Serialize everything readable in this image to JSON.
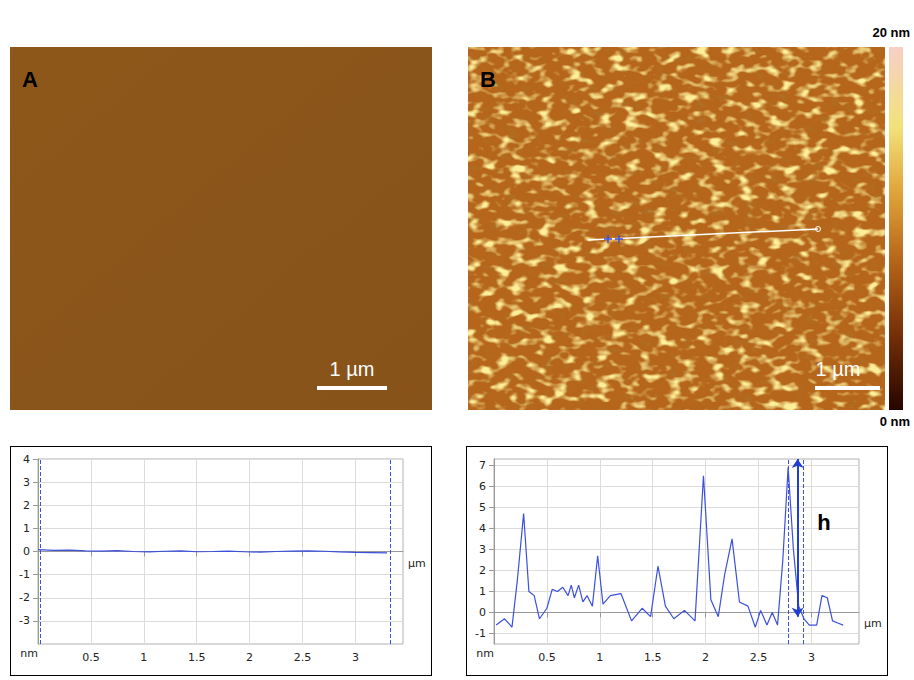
{
  "images": [
    {
      "letter": "A",
      "scale_bar": "1 µm"
    },
    {
      "letter": "B",
      "scale_bar": "1 µm",
      "colorbar": {
        "min": {
          "value": 0,
          "label": "0 nm"
        },
        "max": {
          "value": 20,
          "label": "20 nm"
        }
      }
    }
  ],
  "chart_data": [
    {
      "type": "line",
      "color": "#3c50dc",
      "grid": true,
      "x_label": "µm",
      "y_label": "nm",
      "xlim": [
        0,
        3.45
      ],
      "xticks": [
        0.5,
        1,
        1.5,
        2,
        2.5,
        3
      ],
      "ylim": [
        -4,
        4
      ],
      "yticks": [
        -3,
        -2,
        -1,
        0,
        1,
        2,
        3,
        4
      ],
      "x": [
        0,
        0.15,
        0.3,
        0.45,
        0.6,
        0.75,
        0.9,
        1.05,
        1.2,
        1.35,
        1.5,
        1.65,
        1.8,
        1.95,
        2.1,
        2.25,
        2.4,
        2.55,
        2.7,
        2.85,
        3.0,
        3.15,
        3.3
      ],
      "values": [
        0.08,
        0.05,
        0.06,
        0.03,
        0.02,
        0.04,
        0,
        -0.02,
        0.01,
        0.03,
        -0.01,
        0,
        0.02,
        -0.01,
        -0.03,
        0,
        0.02,
        0.03,
        0.01,
        -0.02,
        -0.04,
        -0.05,
        -0.06
      ],
      "cursors": [
        0.02,
        3.33
      ]
    },
    {
      "type": "line",
      "color": "#3c50dc",
      "grid": true,
      "x_label": "µm",
      "y_label": "nm",
      "xlim": [
        0,
        3.45
      ],
      "xticks": [
        0.5,
        1,
        1.5,
        2,
        2.5,
        3
      ],
      "ylim": [
        -1.5,
        7.3
      ],
      "yticks": [
        -1,
        0,
        1,
        2,
        3,
        4,
        5,
        6,
        7
      ],
      "x": [
        0.02,
        0.1,
        0.17,
        0.22,
        0.28,
        0.33,
        0.38,
        0.43,
        0.5,
        0.55,
        0.6,
        0.65,
        0.7,
        0.73,
        0.76,
        0.8,
        0.84,
        0.88,
        0.93,
        0.98,
        1.03,
        1.1,
        1.2,
        1.3,
        1.4,
        1.48,
        1.55,
        1.62,
        1.7,
        1.8,
        1.9,
        1.98,
        2.05,
        2.12,
        2.18,
        2.25,
        2.32,
        2.4,
        2.47,
        2.52,
        2.58,
        2.63,
        2.68,
        2.73,
        2.78,
        2.83,
        2.88,
        2.93,
        2.98,
        3.05,
        3.1,
        3.15,
        3.2,
        3.25,
        3.3
      ],
      "values": [
        -0.6,
        -0.3,
        -0.7,
        1.5,
        4.7,
        1.0,
        0.8,
        -0.3,
        0.2,
        1.1,
        1.0,
        1.2,
        0.8,
        1.3,
        0.7,
        1.3,
        0.5,
        0.8,
        0.3,
        2.7,
        0.4,
        0.8,
        0.9,
        -0.4,
        0.2,
        -0.2,
        2.2,
        0.3,
        -0.3,
        0.1,
        -0.4,
        6.5,
        0.6,
        -0.2,
        1.8,
        3.5,
        0.5,
        0.3,
        -0.7,
        0.1,
        -0.6,
        0,
        -0.6,
        2.5,
        6.9,
        3.0,
        0.3,
        -0.3,
        -0.6,
        -0.6,
        0.8,
        0.7,
        -0.4,
        -0.5,
        -0.6
      ],
      "cursors": [
        2.78,
        2.92
      ],
      "annotation": {
        "text": "h",
        "x": 3.12,
        "y": 4.3,
        "arrow_x": 2.87,
        "arrow_from": 7.3,
        "arrow_to": -0.2
      }
    }
  ]
}
